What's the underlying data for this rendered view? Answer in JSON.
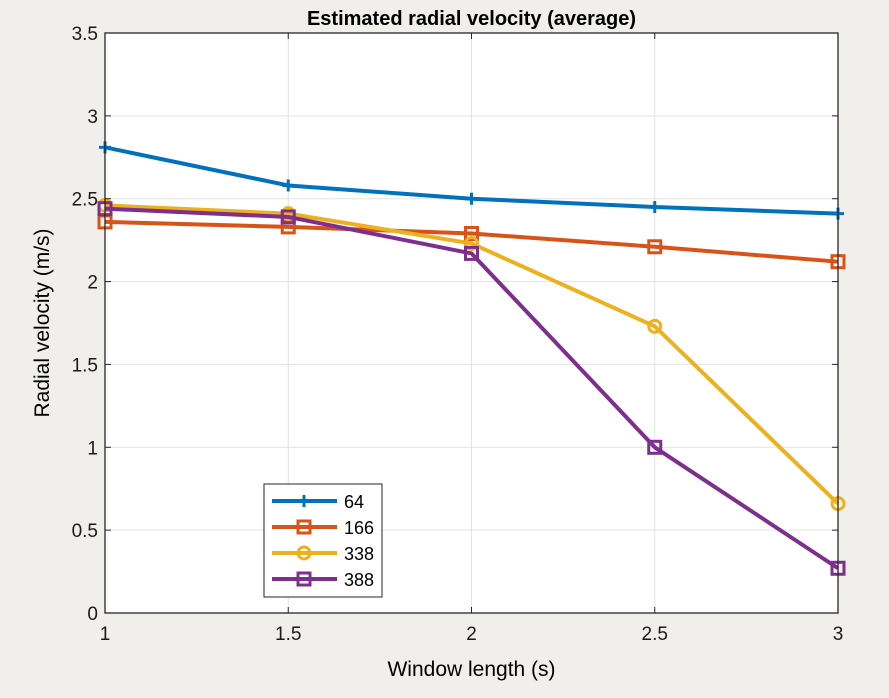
{
  "chart_data": {
    "type": "line",
    "title": "Estimated radial velocity (average)",
    "xlabel": "Window length (s)",
    "ylabel": "Radial velocity (m/s)",
    "xlim": [
      1,
      3
    ],
    "ylim": [
      0,
      3.5
    ],
    "grid": true,
    "x": [
      1,
      1.5,
      2,
      2.5,
      3
    ],
    "xticks": [
      1,
      1.5,
      2,
      2.5,
      3
    ],
    "xtick_labels": [
      "1",
      "1.5",
      "2",
      "2.5",
      "3"
    ],
    "yticks": [
      0,
      0.5,
      1,
      1.5,
      2,
      2.5,
      3,
      3.5
    ],
    "ytick_labels": [
      "0",
      "0.5",
      "1",
      "1.5",
      "2",
      "2.5",
      "3",
      "3.5"
    ],
    "legend_position": "bottom-left",
    "series": [
      {
        "name": "64",
        "color": "#0072bd",
        "marker": "plus",
        "values": [
          2.81,
          2.58,
          2.5,
          2.45,
          2.41
        ]
      },
      {
        "name": "166",
        "color": "#d95319",
        "marker": "square",
        "values": [
          2.36,
          2.33,
          2.29,
          2.21,
          2.12
        ]
      },
      {
        "name": "338",
        "color": "#edb120",
        "marker": "circle",
        "values": [
          2.46,
          2.41,
          2.23,
          1.73,
          0.66
        ]
      },
      {
        "name": "388",
        "color": "#7e2f8e",
        "marker": "square",
        "values": [
          2.44,
          2.39,
          2.17,
          1.0,
          0.27
        ]
      }
    ]
  }
}
